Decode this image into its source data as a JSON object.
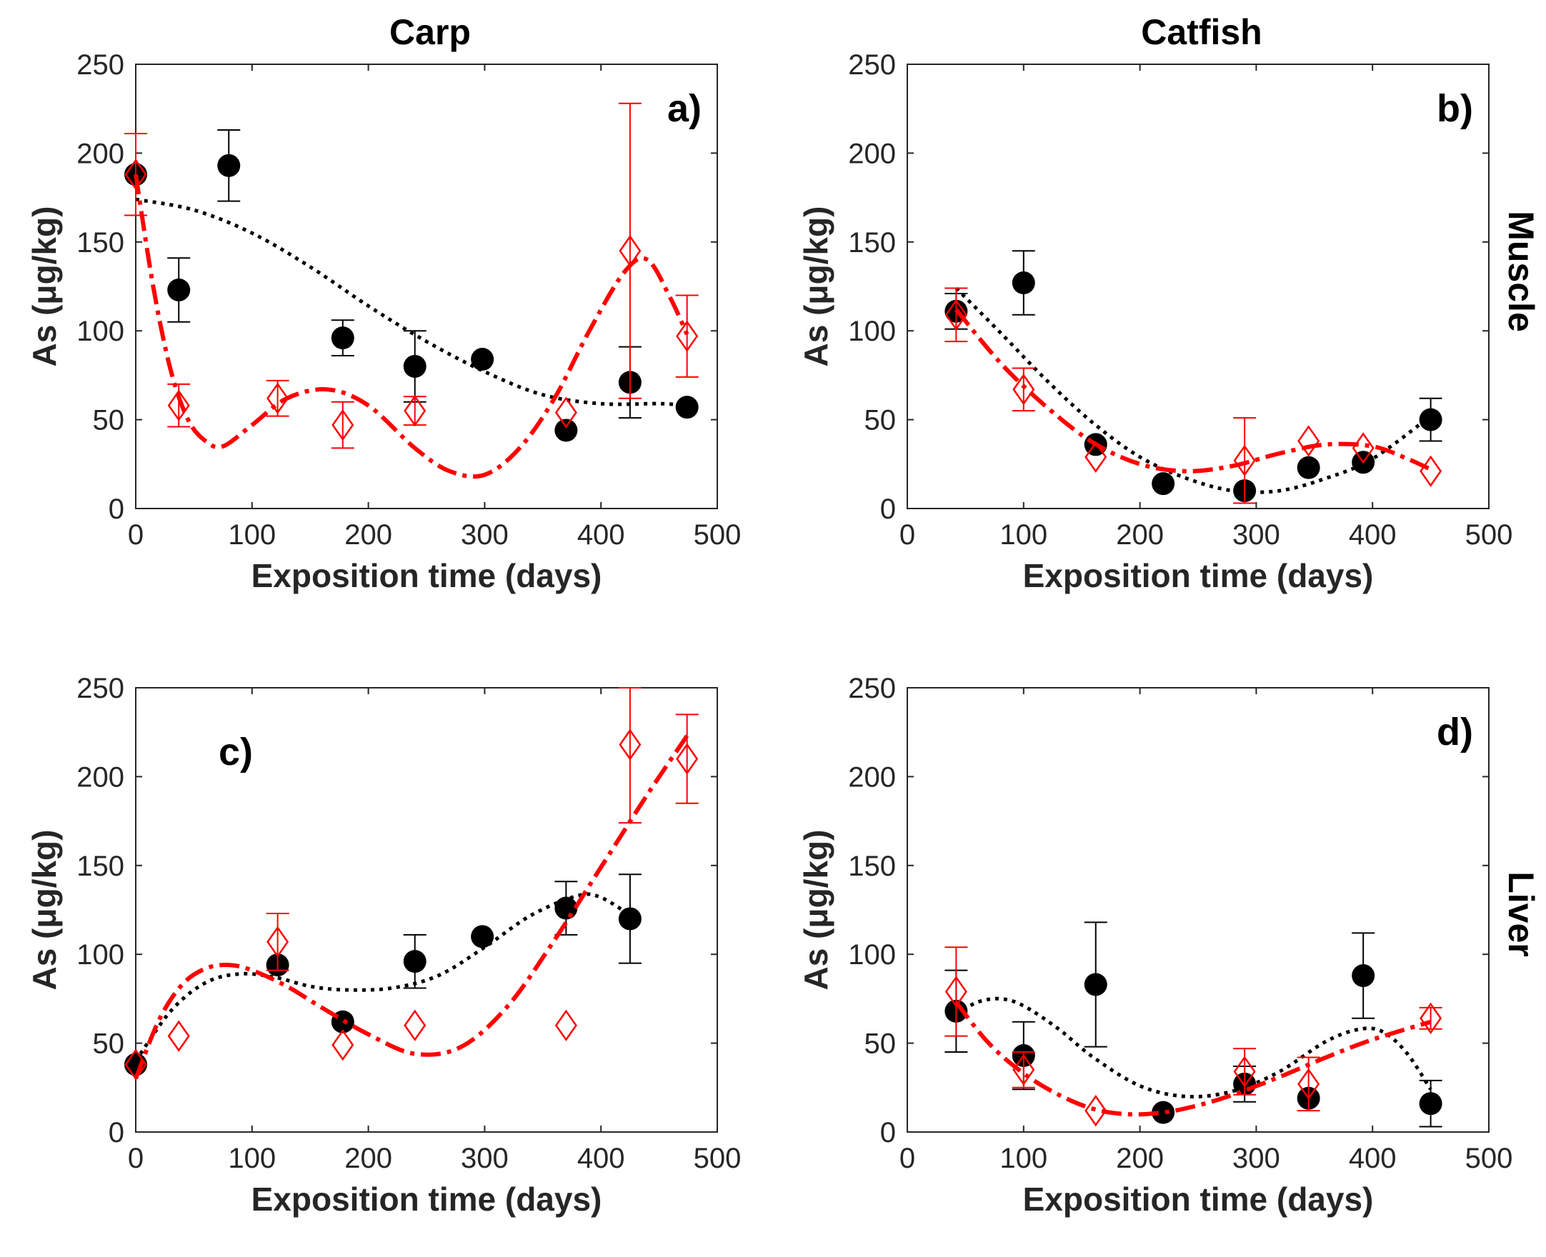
{
  "colors": {
    "measured_a": "#000000",
    "measured_b": "#ff0000",
    "axis": "#262626"
  },
  "column_titles": [
    "Carp",
    "Catfish"
  ],
  "row_titles": [
    "Muscle",
    "Liver"
  ],
  "chart_data": [
    {
      "type": "scatter",
      "panel_label": "a)",
      "xlabel": "Exposition time (days)",
      "ylabel": "As (μg/kg)",
      "xlim": [
        0,
        500
      ],
      "ylim": [
        0,
        250
      ],
      "xticks": [
        "0",
        "100",
        "200",
        "300",
        "400",
        "500"
      ],
      "yticks": [
        "0",
        "50",
        "100",
        "150",
        "200",
        "250"
      ],
      "series": [
        {
          "name": "black",
          "marker": "circle",
          "x": [
            0,
            37,
            80,
            178,
            240,
            298,
            370,
            425,
            474
          ],
          "y": [
            188,
            123,
            193,
            96,
            80,
            84,
            44,
            71,
            57
          ],
          "err": [
            0,
            18,
            20,
            10,
            20,
            0,
            0,
            20,
            0
          ],
          "fit": {
            "x": [
              0,
              50,
              100,
              150,
              200,
              250,
              300,
              350,
              400,
              450,
              474
            ],
            "y": [
              174,
              168,
              155,
              136,
              114,
              94,
              77,
              64,
              59,
              59,
              58
            ]
          }
        },
        {
          "name": "red",
          "marker": "diamond",
          "x": [
            0,
            37,
            122,
            178,
            240,
            370,
            425,
            474
          ],
          "y": [
            188,
            58,
            62,
            47,
            55,
            54,
            145,
            97
          ],
          "err": [
            23,
            12,
            10,
            13,
            8,
            0,
            83,
            23
          ],
          "fit": {
            "x": [
              0,
              15,
              30,
              45,
              60,
              75,
              100,
              130,
              165,
              200,
              240,
              270,
              300,
              330,
              360,
              390,
              420,
              440,
              460,
              474
            ],
            "y": [
              188,
              125,
              78,
              50,
              38,
              35,
              47,
              62,
              67,
              58,
              34,
              21,
              19,
              34,
              62,
              100,
              133,
              140,
              118,
              98
            ]
          }
        }
      ]
    },
    {
      "type": "scatter",
      "panel_label": "b)",
      "xlabel": "Exposition time (days)",
      "ylabel": "As (μg/kg)",
      "xlim": [
        0,
        500
      ],
      "ylim": [
        0,
        250
      ],
      "xticks": [
        "0",
        "100",
        "200",
        "300",
        "400",
        "500"
      ],
      "yticks": [
        "0",
        "50",
        "100",
        "150",
        "200",
        "250"
      ],
      "series": [
        {
          "name": "black",
          "marker": "circle",
          "x": [
            42,
            100,
            162,
            220,
            290,
            345,
            392,
            450
          ],
          "y": [
            111,
            127,
            36,
            14,
            10,
            23,
            26,
            50
          ],
          "err": [
            10,
            18,
            0,
            0,
            0,
            0,
            0,
            12
          ],
          "fit": {
            "x": [
              42,
              80,
              120,
              160,
              200,
              240,
              280,
              320,
              360,
              400,
              450
            ],
            "y": [
              124,
              99,
              72,
              48,
              29,
              17,
              10,
              10,
              17,
              28,
              52
            ]
          }
        },
        {
          "name": "red",
          "marker": "diamond",
          "x": [
            42,
            100,
            162,
            290,
            345,
            392,
            450
          ],
          "y": [
            109,
            67,
            29,
            27,
            38,
            34,
            21
          ],
          "err": [
            15,
            12,
            0,
            24,
            0,
            0,
            0
          ],
          "fit": {
            "x": [
              42,
              80,
              120,
              160,
              200,
              240,
              280,
              320,
              360,
              400,
              430,
              450
            ],
            "y": [
              112,
              82,
              57,
              37,
              25,
              21,
              24,
              31,
              36,
              35,
              28,
              22
            ]
          }
        }
      ]
    },
    {
      "type": "scatter",
      "panel_label": "c)",
      "xlabel": "Exposition time (days)",
      "ylabel": "As (μg/kg)",
      "xlim": [
        0,
        500
      ],
      "ylim": [
        0,
        250
      ],
      "xticks": [
        "0",
        "100",
        "200",
        "300",
        "400",
        "500"
      ],
      "yticks": [
        "0",
        "50",
        "100",
        "150",
        "200",
        "250"
      ],
      "series": [
        {
          "name": "black",
          "marker": "circle",
          "x": [
            0,
            122,
            178,
            240,
            298,
            370,
            425
          ],
          "y": [
            38,
            94,
            62,
            96,
            110,
            126,
            120
          ],
          "err": [
            0,
            0,
            0,
            15,
            0,
            15,
            25
          ],
          "fit": {
            "x": [
              0,
              30,
              60,
              90,
              120,
              150,
              180,
              220,
              260,
              300,
              340,
              380,
              400,
              425
            ],
            "y": [
              40,
              68,
              84,
              89,
              87,
              82,
              80,
              81,
              88,
              104,
              122,
              133,
              132,
              122
            ]
          }
        },
        {
          "name": "red",
          "marker": "diamond",
          "x": [
            0,
            37,
            122,
            178,
            240,
            370,
            425,
            474
          ],
          "y": [
            38,
            54,
            107,
            49,
            60,
            60,
            218,
            210
          ],
          "err": [
            0,
            0,
            16,
            0,
            0,
            0,
            44,
            25
          ],
          "fit": {
            "x": [
              0,
              20,
              40,
              60,
              80,
              100,
              130,
              160,
              200,
              240,
              280,
              320,
              360,
              400,
              440,
              474
            ],
            "y": [
              30,
              63,
              83,
              92,
              94,
              91,
              82,
              70,
              55,
              44,
              48,
              71,
              108,
              149,
              190,
              223
            ]
          }
        }
      ]
    },
    {
      "type": "scatter",
      "panel_label": "d)",
      "xlabel": "Exposition time (days)",
      "ylabel": "As (μg/kg)",
      "xlim": [
        0,
        500
      ],
      "ylim": [
        0,
        250
      ],
      "xticks": [
        "0",
        "100",
        "200",
        "300",
        "400",
        "500"
      ],
      "yticks": [
        "0",
        "50",
        "100",
        "150",
        "200",
        "250"
      ],
      "series": [
        {
          "name": "black",
          "marker": "circle",
          "x": [
            42,
            100,
            162,
            220,
            290,
            345,
            392,
            450
          ],
          "y": [
            68,
            43,
            83,
            11,
            27,
            19,
            88,
            16
          ],
          "err": [
            23,
            19,
            35,
            0,
            10,
            0,
            24,
            13
          ],
          "fit": {
            "x": [
              42,
              60,
              80,
              100,
              130,
              160,
              200,
              240,
              280,
              320,
              360,
              390,
              410,
              430,
              450
            ],
            "y": [
              66,
              73,
              75,
              71,
              58,
              42,
              26,
              20,
              23,
              34,
              51,
              58,
              56,
              44,
              24
            ]
          }
        },
        {
          "name": "red",
          "marker": "diamond",
          "x": [
            42,
            100,
            162,
            290,
            345,
            450
          ],
          "y": [
            79,
            35,
            12,
            34,
            27,
            64
          ],
          "err": [
            25,
            10,
            0,
            13,
            15,
            6
          ],
          "fit": {
            "x": [
              42,
              70,
              100,
              130,
              160,
              190,
              220,
              250,
              280,
              320,
              360,
              400,
              450
            ],
            "y": [
              73,
              50,
              33,
              21,
              13,
              10,
              11,
              15,
              21,
              31,
              42,
              52,
              62
            ]
          }
        }
      ]
    }
  ]
}
